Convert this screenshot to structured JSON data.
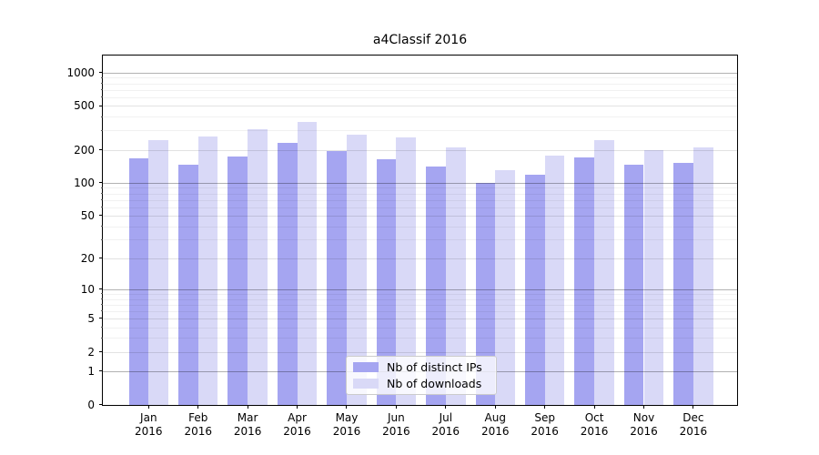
{
  "chart_data": {
    "type": "bar",
    "title": "a4Classif 2016",
    "categories": [
      "Jan",
      "Feb",
      "Mar",
      "Apr",
      "May",
      "Jun",
      "Jul",
      "Aug",
      "Sep",
      "Oct",
      "Nov",
      "Dec"
    ],
    "x_tick_second_line": "2016",
    "series": [
      {
        "name": "Nb of distinct IPs",
        "color": "#a5a5f1",
        "values": [
          166,
          146,
          174,
          232,
          194,
          164,
          142,
          100,
          118,
          169,
          146,
          151
        ]
      },
      {
        "name": "Nb of downloads",
        "color": "#d9d9f7",
        "values": [
          247,
          262,
          308,
          355,
          272,
          258,
          209,
          131,
          176,
          247,
          198,
          210
        ]
      }
    ],
    "y_axis": {
      "scale": "log10(value+1)",
      "ticks": [
        0,
        1,
        2,
        5,
        10,
        20,
        50,
        100,
        200,
        500,
        1000
      ],
      "tick_labels": [
        "0",
        "1",
        "2",
        "5",
        "10",
        "20",
        "50",
        "100",
        "200",
        "500",
        "1000"
      ]
    },
    "ylim": [
      0,
      1430
    ],
    "grid": "both",
    "legend": {
      "position": "bottom-center",
      "entries": [
        "Nb of distinct IPs",
        "Nb of downloads"
      ]
    },
    "colors": {
      "grid_major": "#b0b0b0",
      "spine": "#000000",
      "background": "#ffffff"
    }
  }
}
